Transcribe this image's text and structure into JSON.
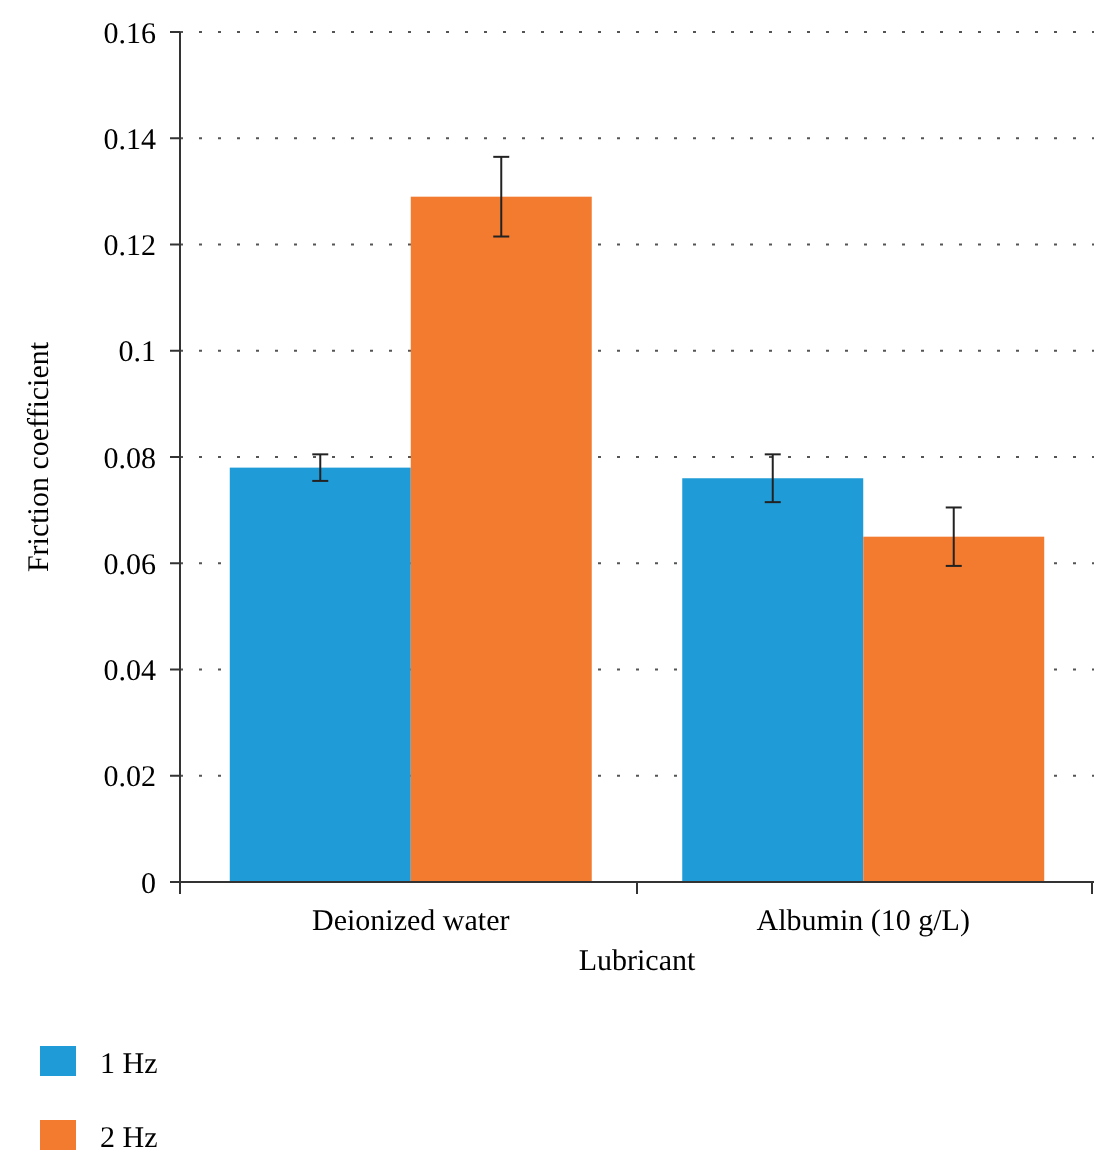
{
  "chart_data": {
    "type": "bar",
    "xlabel": "Lubricant",
    "ylabel": "Friction coefficient",
    "categories": [
      "Deionized water",
      "Albumin (10 g/L)"
    ],
    "series": [
      {
        "name": "1 Hz",
        "color": "#1f9cd8",
        "values": [
          0.078,
          0.076
        ],
        "errors": [
          0.0025,
          0.0045
        ]
      },
      {
        "name": "2 Hz",
        "color": "#f37b2f",
        "values": [
          0.129,
          0.065
        ],
        "errors": [
          0.0075,
          0.0055
        ]
      }
    ],
    "ylim": [
      0,
      0.16
    ],
    "yticks": [
      0,
      0.02,
      0.04,
      0.06,
      0.08,
      0.1,
      0.12,
      0.14,
      0.16
    ],
    "grid": "y",
    "legend": "bottom"
  }
}
